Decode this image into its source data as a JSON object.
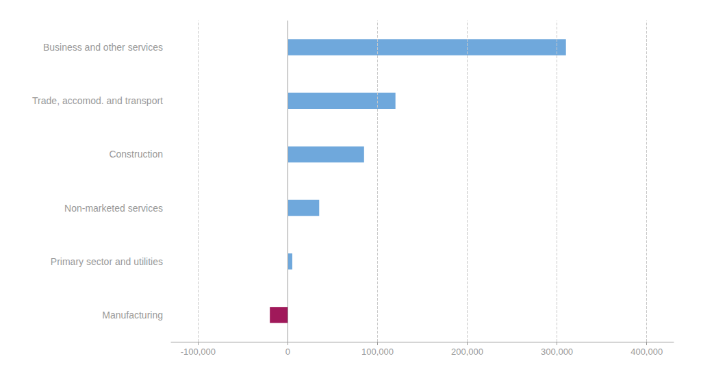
{
  "chart_data": {
    "type": "bar",
    "orientation": "horizontal",
    "categories": [
      "Manufacturing",
      "Primary sector and utilities",
      "Non-marketed services",
      "Construction",
      "Trade, accomod. and transport",
      "Business and other services"
    ],
    "values": [
      -20000,
      5000,
      35000,
      85000,
      120000,
      310000
    ],
    "colors": [
      "#A0195A",
      "#6FA8DC",
      "#6FA8DC",
      "#6FA8DC",
      "#6FA8DC",
      "#6FA8DC"
    ],
    "xlim": [
      -130000,
      430000
    ],
    "xticks": [
      {
        "value": -100000,
        "label": "-100,000"
      },
      0,
      {
        "value": 100000,
        "label": "100,000"
      },
      {
        "value": 200000,
        "label": "200,000"
      },
      {
        "value": 300000,
        "label": "300,000"
      },
      {
        "value": 400000,
        "label": "400,000"
      }
    ],
    "grid": true
  }
}
